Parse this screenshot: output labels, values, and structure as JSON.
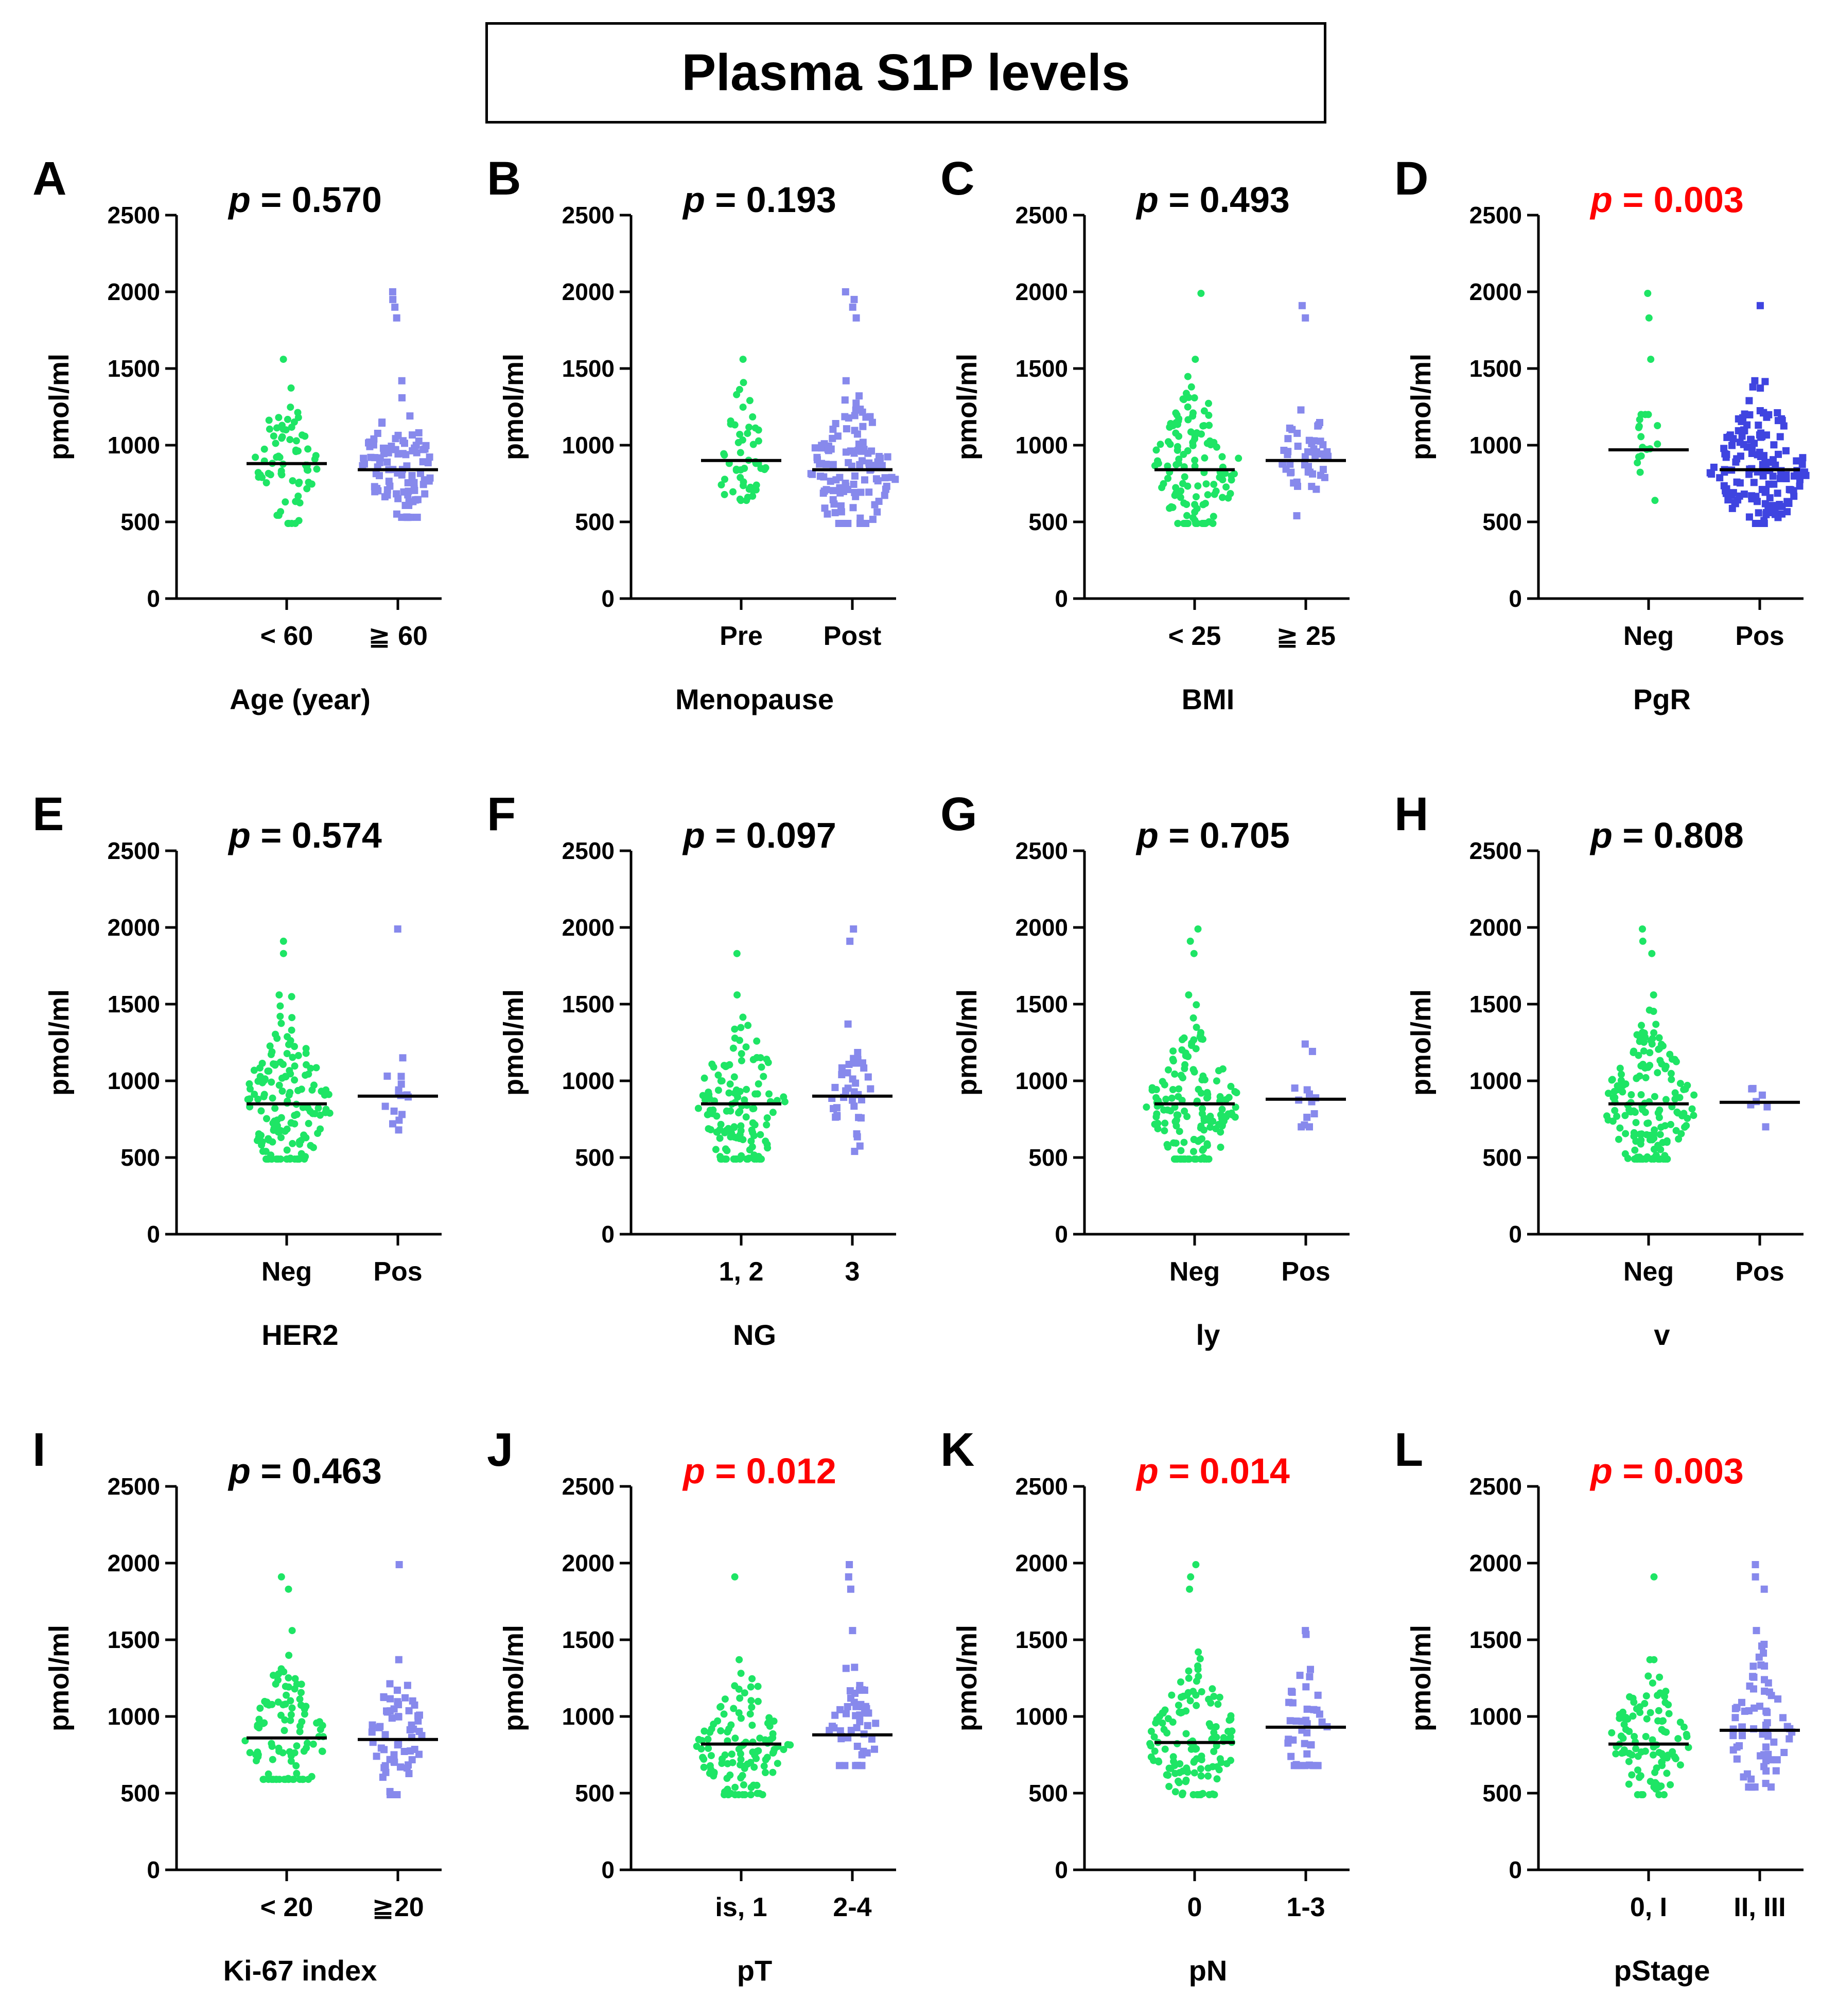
{
  "figure_title": "Plasma S1P levels",
  "colors": {
    "group1": "#1ee565",
    "group2": "#8789ec",
    "group2_dark": "#3f44e0",
    "median": "#000000",
    "significant": "#ff0000",
    "text": "#000000"
  },
  "chart_data": [
    {
      "type": "scatter",
      "panel": "A",
      "p_label": "p",
      "p_value": "= 0.570",
      "significant": false,
      "ylabel": "pmol/ml",
      "ylim": [
        0,
        2500
      ],
      "yticks": [
        "0",
        "500",
        "1000",
        "1500",
        "2000",
        "2500"
      ],
      "xlabel": "Age (year)",
      "categories": [
        "< 60",
        "≧ 60"
      ],
      "medians": [
        880,
        840
      ],
      "groups": [
        {
          "n": 70,
          "min": 490,
          "max": 1560,
          "outliers": []
        },
        {
          "n": 95,
          "min": 530,
          "max": 1420,
          "outliers": [
            1830,
            1900,
            1950,
            2000
          ]
        }
      ]
    },
    {
      "type": "scatter",
      "panel": "B",
      "p_label": "p",
      "p_value": "= 0.193",
      "significant": false,
      "ylabel": "pmol/ml",
      "ylim": [
        0,
        2500
      ],
      "yticks": [
        "0",
        "500",
        "1000",
        "1500",
        "2000",
        "2500"
      ],
      "xlabel": "Menopause",
      "categories": [
        "Pre",
        "Post"
      ],
      "medians": [
        900,
        840
      ],
      "groups": [
        {
          "n": 50,
          "min": 640,
          "max": 1560,
          "outliers": []
        },
        {
          "n": 115,
          "min": 490,
          "max": 1420,
          "outliers": [
            1830,
            1900,
            1950,
            2000
          ]
        }
      ]
    },
    {
      "type": "scatter",
      "panel": "C",
      "p_label": "p",
      "p_value": "= 0.493",
      "significant": false,
      "ylabel": "pmol/ml",
      "ylim": [
        0,
        2500
      ],
      "yticks": [
        "0",
        "500",
        "1000",
        "1500",
        "2000",
        "2500"
      ],
      "xlabel": "BMI",
      "categories": [
        "< 25",
        "≧ 25"
      ],
      "medians": [
        840,
        900
      ],
      "groups": [
        {
          "n": 120,
          "min": 490,
          "max": 1560,
          "outliers": [
            1990
          ]
        },
        {
          "n": 45,
          "min": 540,
          "max": 1230,
          "outliers": [
            1830,
            1910
          ]
        }
      ]
    },
    {
      "type": "scatter",
      "panel": "D",
      "p_label": "p",
      "p_value": "= 0.003",
      "significant": true,
      "ylabel": "pmol/ml",
      "ylim": [
        0,
        2500
      ],
      "yticks": [
        "0",
        "500",
        "1000",
        "1500",
        "2000",
        "2500"
      ],
      "xlabel": "PgR",
      "categories": [
        "Neg",
        "Pos"
      ],
      "medians": [
        970,
        840
      ],
      "groups": [
        {
          "n": 15,
          "min": 640,
          "max": 1200,
          "outliers": [
            1560,
            1830,
            1990
          ]
        },
        {
          "n": 150,
          "min": 490,
          "max": 1420,
          "outliers": [
            1910
          ]
        }
      ]
    },
    {
      "type": "scatter",
      "panel": "E",
      "p_label": "p",
      "p_value": "= 0.574",
      "significant": false,
      "ylabel": "pmol/ml",
      "ylim": [
        0,
        2500
      ],
      "yticks": [
        "0",
        "500",
        "1000",
        "1500",
        "2000",
        "2500"
      ],
      "xlabel": "HER2",
      "categories": [
        "Neg",
        "Pos"
      ],
      "medians": [
        850,
        900
      ],
      "groups": [
        {
          "n": 150,
          "min": 490,
          "max": 1560,
          "outliers": [
            1830,
            1910
          ]
        },
        {
          "n": 13,
          "min": 680,
          "max": 1150,
          "outliers": [
            1990
          ]
        }
      ]
    },
    {
      "type": "scatter",
      "panel": "F",
      "p_label": "p",
      "p_value": "= 0.097",
      "significant": false,
      "ylabel": "pmol/ml",
      "ylim": [
        0,
        2500
      ],
      "yticks": [
        "0",
        "500",
        "1000",
        "1500",
        "2000",
        "2500"
      ],
      "xlabel": "NG",
      "categories": [
        "1, 2",
        "3"
      ],
      "medians": [
        850,
        900
      ],
      "groups": [
        {
          "n": 130,
          "min": 490,
          "max": 1560,
          "outliers": [
            1830
          ]
        },
        {
          "n": 35,
          "min": 540,
          "max": 1370,
          "outliers": [
            1910,
            1990
          ]
        }
      ]
    },
    {
      "type": "scatter",
      "panel": "G",
      "p_label": "p",
      "p_value": "= 0.705",
      "significant": false,
      "ylabel": "pmol/ml",
      "ylim": [
        0,
        2500
      ],
      "yticks": [
        "0",
        "500",
        "1000",
        "1500",
        "2000",
        "2500"
      ],
      "xlabel": "ly",
      "categories": [
        "Neg",
        "Pos"
      ],
      "medians": [
        850,
        880
      ],
      "groups": [
        {
          "n": 155,
          "min": 490,
          "max": 1560,
          "outliers": [
            1830,
            1910,
            1990
          ]
        },
        {
          "n": 11,
          "min": 700,
          "max": 1240,
          "outliers": []
        }
      ]
    },
    {
      "type": "scatter",
      "panel": "H",
      "p_label": "p",
      "p_value": "= 0.808",
      "significant": false,
      "ylabel": "pmol/ml",
      "ylim": [
        0,
        2500
      ],
      "yticks": [
        "0",
        "500",
        "1000",
        "1500",
        "2000",
        "2500"
      ],
      "xlabel": "v",
      "categories": [
        "Neg",
        "Pos"
      ],
      "medians": [
        850,
        860
      ],
      "groups": [
        {
          "n": 160,
          "min": 490,
          "max": 1560,
          "outliers": [
            1830,
            1910,
            1990
          ]
        },
        {
          "n": 5,
          "min": 700,
          "max": 950,
          "outliers": []
        }
      ]
    },
    {
      "type": "scatter",
      "panel": "I",
      "p_label": "p",
      "p_value": "= 0.463",
      "significant": false,
      "ylabel": "pmol/ml",
      "ylim": [
        0,
        2500
      ],
      "yticks": [
        "0",
        "500",
        "1000",
        "1500",
        "2000",
        "2500"
      ],
      "xlabel": "Ki-67 index",
      "categories": [
        "< 20",
        "≧20"
      ],
      "medians": [
        860,
        850
      ],
      "groups": [
        {
          "n": 100,
          "min": 590,
          "max": 1560,
          "outliers": [
            1830,
            1910
          ]
        },
        {
          "n": 60,
          "min": 490,
          "max": 1370,
          "outliers": [
            1990
          ]
        }
      ]
    },
    {
      "type": "scatter",
      "panel": "J",
      "p_label": "p",
      "p_value": "= 0.012",
      "significant": true,
      "ylabel": "pmol/ml",
      "ylim": [
        0,
        2500
      ],
      "yticks": [
        "0",
        "500",
        "1000",
        "1500",
        "2000",
        "2500"
      ],
      "xlabel": "pT",
      "categories": [
        "is, 1",
        "2-4"
      ],
      "medians": [
        820,
        880
      ],
      "groups": [
        {
          "n": 120,
          "min": 490,
          "max": 1370,
          "outliers": [
            1910
          ]
        },
        {
          "n": 50,
          "min": 680,
          "max": 1560,
          "outliers": [
            1830,
            1910,
            1990
          ]
        }
      ]
    },
    {
      "type": "scatter",
      "panel": "K",
      "p_label": "p",
      "p_value": "= 0.014",
      "significant": true,
      "ylabel": "pmol/ml",
      "ylim": [
        0,
        2500
      ],
      "yticks": [
        "0",
        "500",
        "1000",
        "1500",
        "2000",
        "2500"
      ],
      "xlabel": "pN",
      "categories": [
        "0",
        "1-3"
      ],
      "medians": [
        830,
        930
      ],
      "groups": [
        {
          "n": 130,
          "min": 490,
          "max": 1420,
          "outliers": [
            1830,
            1910,
            1990
          ]
        },
        {
          "n": 40,
          "min": 680,
          "max": 1560,
          "outliers": []
        }
      ]
    },
    {
      "type": "scatter",
      "panel": "L",
      "p_label": "p",
      "p_value": "= 0.003",
      "significant": true,
      "ylabel": "pmol/ml",
      "ylim": [
        0,
        2500
      ],
      "yticks": [
        "0",
        "500",
        "1000",
        "1500",
        "2000",
        "2500"
      ],
      "xlabel": "pStage",
      "categories": [
        "0, I",
        "II, III"
      ],
      "medians": [
        820,
        910
      ],
      "groups": [
        {
          "n": 100,
          "min": 490,
          "max": 1370,
          "outliers": [
            1910
          ]
        },
        {
          "n": 70,
          "min": 540,
          "max": 1560,
          "outliers": [
            1830,
            1910,
            1990
          ]
        }
      ]
    }
  ]
}
